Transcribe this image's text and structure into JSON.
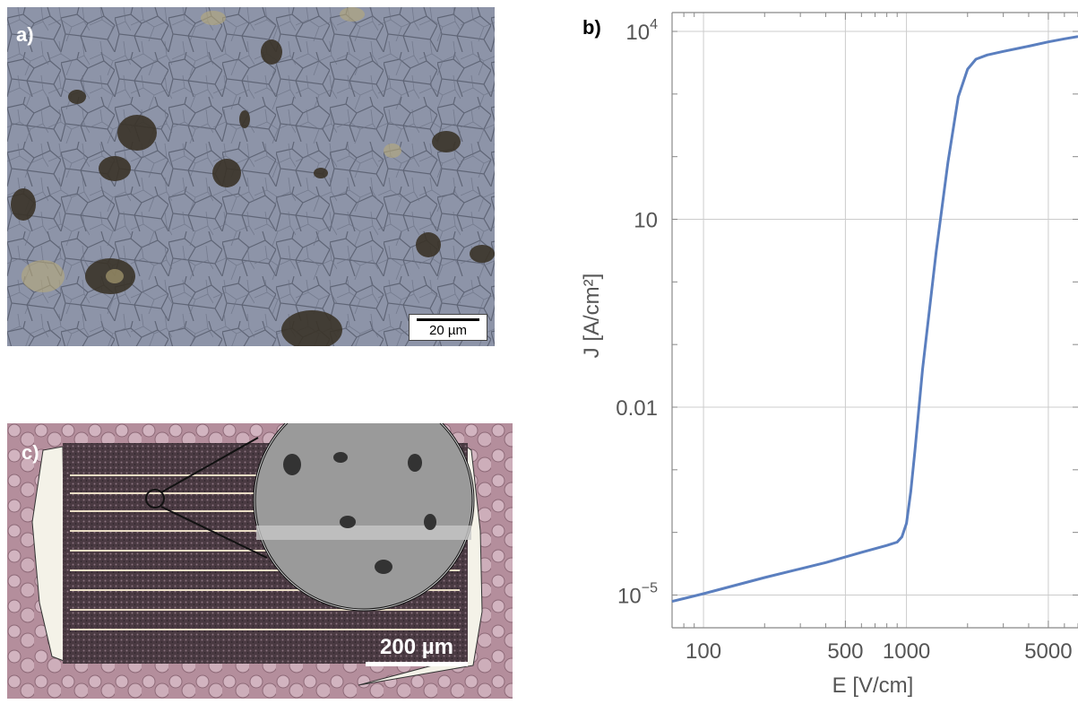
{
  "panels": {
    "a": {
      "label": "a)",
      "scale_bar": "20 µm"
    },
    "b": {
      "label": "b)"
    },
    "c": {
      "label": "c)",
      "scale_bar": "200 µm"
    }
  },
  "chart_data": {
    "type": "line",
    "xlabel": "E [V/cm]",
    "ylabel": "J [A/cm²]",
    "xscale": "log",
    "yscale": "log",
    "xlim": [
      70,
      7000
    ],
    "ylim": [
      3e-06,
      20000
    ],
    "x_ticks": [
      {
        "value": 100,
        "label": "100"
      },
      {
        "value": 500,
        "label": "500"
      },
      {
        "value": 1000,
        "label": "1000"
      },
      {
        "value": 5000,
        "label": "5000"
      }
    ],
    "y_ticks": [
      {
        "value": 1e-05,
        "base": "10",
        "exp": "−5"
      },
      {
        "value": 0.01,
        "base": "0.01",
        "exp": ""
      },
      {
        "value": 10,
        "base": "10",
        "exp": ""
      },
      {
        "value": 10000,
        "base": "10",
        "exp": "4"
      }
    ],
    "grid": true,
    "series": [
      {
        "color": "#5b7fbf",
        "x": [
          70,
          100,
          200,
          400,
          600,
          800,
          900,
          950,
          1000,
          1050,
          1100,
          1200,
          1400,
          1600,
          1800,
          2000,
          2200,
          2500,
          3000,
          4000,
          5000,
          6000,
          7000
        ],
        "y": [
          7.9e-06,
          1.05e-05,
          1.9e-05,
          3.3e-05,
          4.8e-05,
          6.2e-05,
          7e-05,
          8.5e-05,
          0.00014,
          0.00045,
          0.002,
          0.04,
          3,
          80,
          900,
          2500,
          3600,
          4200,
          4800,
          5800,
          6800,
          7600,
          8300
        ]
      }
    ]
  }
}
